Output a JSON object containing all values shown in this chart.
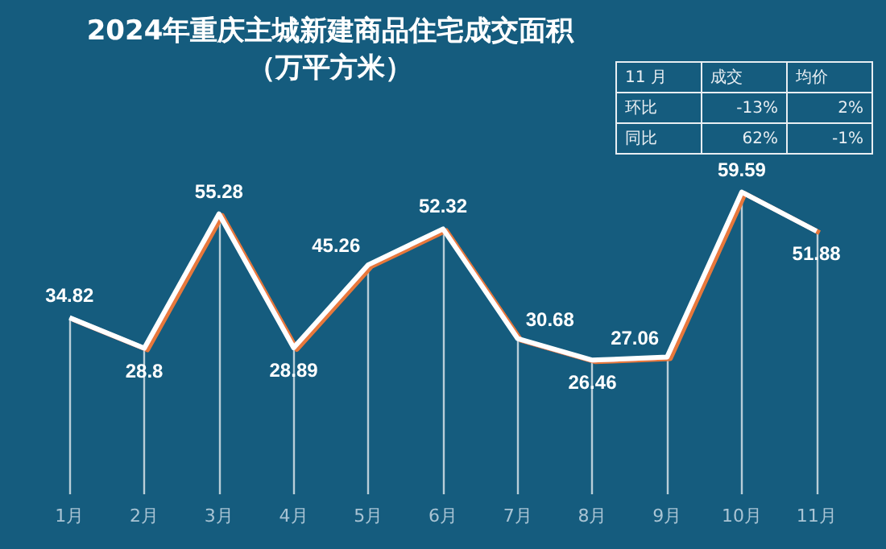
{
  "chart_data": {
    "type": "line",
    "title": "2024年重庆主城新建商品住宅成交面积",
    "subtitle": "（万平方米）",
    "categories": [
      "1月",
      "2月",
      "3月",
      "4月",
      "5月",
      "6月",
      "7月",
      "8月",
      "9月",
      "10月",
      "11月"
    ],
    "series": [
      {
        "color": "#ffffff",
        "values": [
          34.82,
          28.8,
          55.28,
          28.89,
          45.26,
          52.32,
          30.68,
          26.46,
          27.06,
          59.59,
          51.88
        ]
      }
    ],
    "data_labels": true,
    "grid": "x",
    "annotations": [
      "11 月",
      "成交",
      "均价",
      "环比",
      "-13%",
      "2%",
      "同比",
      "62%",
      "-1%"
    ]
  }
}
